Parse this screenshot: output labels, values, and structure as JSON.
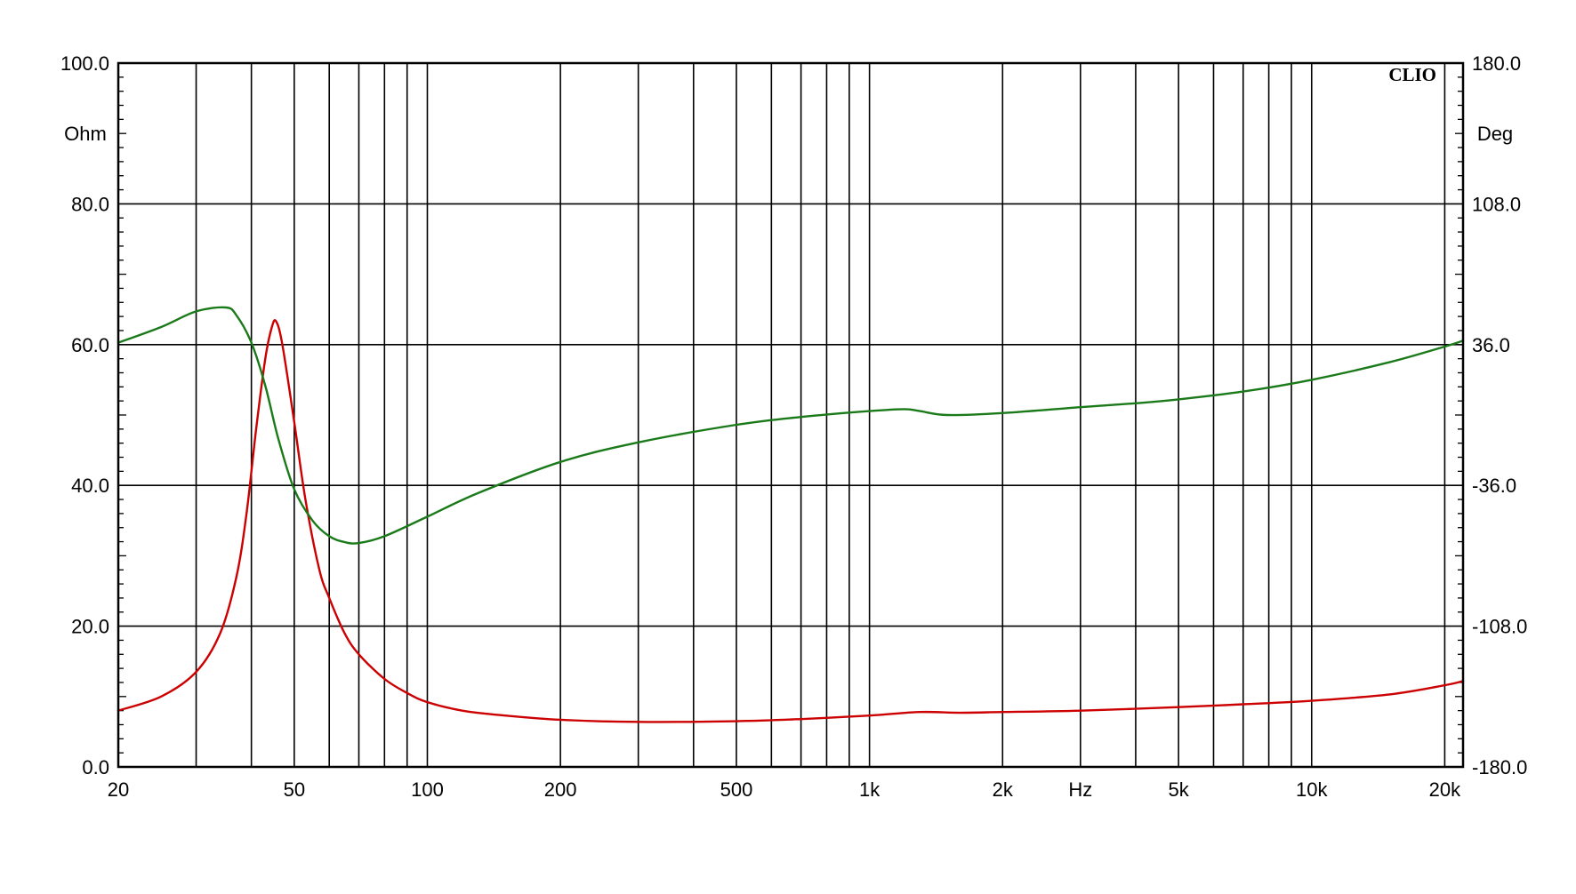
{
  "chart_data": {
    "type": "line",
    "title": "",
    "brand_mark": "CLIO",
    "x_scale": "log",
    "xlim": [
      20,
      22000
    ],
    "x_tick_labels": [
      {
        "value": 20,
        "label": "20"
      },
      {
        "value": 50,
        "label": "50"
      },
      {
        "value": 100,
        "label": "100"
      },
      {
        "value": 200,
        "label": "200"
      },
      {
        "value": 500,
        "label": "500"
      },
      {
        "value": 1000,
        "label": "1k"
      },
      {
        "value": 2000,
        "label": "2k"
      },
      {
        "value": 5000,
        "label": "5k"
      },
      {
        "value": 10000,
        "label": "10k"
      },
      {
        "value": 20000,
        "label": "20k"
      }
    ],
    "x_unit_label": "Hz",
    "x_unit_position": 3000,
    "x_gridlines": [
      30,
      40,
      50,
      60,
      70,
      80,
      90,
      100,
      200,
      300,
      400,
      500,
      600,
      700,
      800,
      900,
      1000,
      2000,
      3000,
      4000,
      5000,
      6000,
      7000,
      8000,
      9000,
      10000,
      20000
    ],
    "y_left": {
      "unit": "Ohm",
      "ylim": [
        0,
        100
      ],
      "ticks": [
        "0.0",
        "20.0",
        "40.0",
        "60.0",
        "80.0",
        "100.0"
      ]
    },
    "y_right": {
      "unit": "Deg",
      "ylim": [
        -180,
        180
      ],
      "ticks": [
        "-180.0",
        "-108.0",
        "-36.0",
        "36.0",
        "108.0",
        "180.0"
      ]
    },
    "grid": true,
    "colors": {
      "impedance": "#cc0000",
      "phase": "#1a7a1a",
      "grid": "#000000"
    },
    "series": [
      {
        "key": "impedance",
        "axis": "left",
        "points": [
          [
            20,
            8.0
          ],
          [
            25,
            10.0
          ],
          [
            30,
            13.5
          ],
          [
            34,
            19.0
          ],
          [
            37,
            27.0
          ],
          [
            39,
            36.0
          ],
          [
            41,
            48.0
          ],
          [
            43,
            58.0
          ],
          [
            44.5,
            62.5
          ],
          [
            45.5,
            63.3
          ],
          [
            47,
            60.0
          ],
          [
            50,
            49.0
          ],
          [
            53,
            38.0
          ],
          [
            57,
            28.0
          ],
          [
            60,
            24.0
          ],
          [
            65,
            19.0
          ],
          [
            70,
            16.0
          ],
          [
            80,
            12.5
          ],
          [
            90,
            10.5
          ],
          [
            100,
            9.2
          ],
          [
            120,
            8.0
          ],
          [
            150,
            7.3
          ],
          [
            200,
            6.7
          ],
          [
            300,
            6.4
          ],
          [
            500,
            6.5
          ],
          [
            700,
            6.8
          ],
          [
            1000,
            7.3
          ],
          [
            1300,
            7.8
          ],
          [
            1600,
            7.7
          ],
          [
            2000,
            7.8
          ],
          [
            3000,
            8.0
          ],
          [
            5000,
            8.5
          ],
          [
            7000,
            8.9
          ],
          [
            10000,
            9.4
          ],
          [
            15000,
            10.3
          ],
          [
            20000,
            11.6
          ],
          [
            22000,
            12.2
          ]
        ]
      },
      {
        "key": "phase",
        "axis": "right",
        "points": [
          [
            20,
            37.0
          ],
          [
            25,
            45.0
          ],
          [
            30,
            53.0
          ],
          [
            35,
            55.0
          ],
          [
            37,
            51.0
          ],
          [
            40,
            37.0
          ],
          [
            43,
            15.0
          ],
          [
            46,
            -12.0
          ],
          [
            50,
            -38.0
          ],
          [
            55,
            -54.0
          ],
          [
            60,
            -62.0
          ],
          [
            65,
            -65.0
          ],
          [
            70,
            -65.5
          ],
          [
            80,
            -62.0
          ],
          [
            100,
            -52.0
          ],
          [
            130,
            -40.0
          ],
          [
            200,
            -24.0
          ],
          [
            300,
            -14.0
          ],
          [
            500,
            -5.0
          ],
          [
            700,
            -1.0
          ],
          [
            1000,
            2.0
          ],
          [
            1200,
            3.0
          ],
          [
            1300,
            2.0
          ],
          [
            1500,
            0.0
          ],
          [
            2000,
            1.0
          ],
          [
            3000,
            4.0
          ],
          [
            4000,
            6.0
          ],
          [
            5000,
            8.0
          ],
          [
            7000,
            12.0
          ],
          [
            10000,
            18.0
          ],
          [
            15000,
            27.0
          ],
          [
            20000,
            35.0
          ],
          [
            22000,
            38.0
          ]
        ]
      }
    ]
  }
}
